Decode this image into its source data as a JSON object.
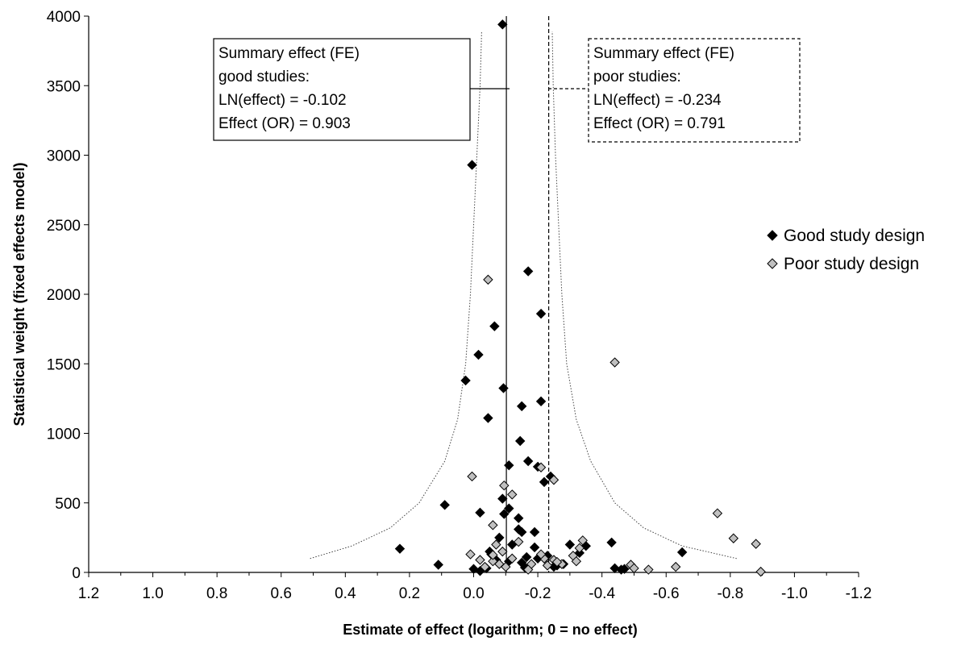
{
  "chart_data": {
    "type": "scatter",
    "title": "",
    "xlabel": "Estimate of effect (logarithm; 0 = no effect)",
    "ylabel": "Statistical weight (fixed effects model)",
    "xlim": [
      1.2,
      -1.2
    ],
    "ylim": [
      0,
      4000
    ],
    "x_reversed": true,
    "x_ticks": [
      "1.2",
      "1.0",
      "0.8",
      "0.6",
      "0.4",
      "0.2",
      "0.0",
      "-0.2",
      "-0.4",
      "-0.6",
      "-0.8",
      "-1.0",
      "-1.2"
    ],
    "x_tick_values": [
      1.2,
      1.0,
      0.8,
      0.6,
      0.4,
      0.2,
      0.0,
      -0.2,
      -0.4,
      -0.6,
      -0.8,
      -1.0,
      -1.2
    ],
    "y_ticks": [
      "0",
      "500",
      "1000",
      "1500",
      "2000",
      "2500",
      "3000",
      "3500",
      "4000"
    ],
    "y_tick_values": [
      0,
      500,
      1000,
      1500,
      2000,
      2500,
      3000,
      3500,
      4000
    ],
    "grid": false,
    "legend_position": "right",
    "series": [
      {
        "name": "Good study design",
        "marker": "diamond",
        "color": "#000000",
        "points": [
          [
            -0.09,
            3940
          ],
          [
            0.005,
            2930
          ],
          [
            -0.17,
            2165
          ],
          [
            -0.065,
            1770
          ],
          [
            -0.21,
            1860
          ],
          [
            -0.015,
            1565
          ],
          [
            0.025,
            1380
          ],
          [
            -0.093,
            1325
          ],
          [
            -0.15,
            1195
          ],
          [
            -0.21,
            1230
          ],
          [
            -0.045,
            1110
          ],
          [
            -0.145,
            945
          ],
          [
            -0.17,
            800
          ],
          [
            -0.24,
            690
          ],
          [
            -0.11,
            770
          ],
          [
            -0.2,
            760
          ],
          [
            -0.22,
            650
          ],
          [
            0.09,
            485
          ],
          [
            -0.09,
            530
          ],
          [
            -0.11,
            460
          ],
          [
            -0.02,
            430
          ],
          [
            -0.095,
            420
          ],
          [
            -0.14,
            390
          ],
          [
            -0.15,
            290
          ],
          [
            -0.19,
            290
          ],
          [
            -0.35,
            190
          ],
          [
            -0.43,
            215
          ],
          [
            0.23,
            170
          ],
          [
            -0.65,
            145
          ],
          [
            0.11,
            55
          ],
          [
            -0.05,
            150
          ],
          [
            -0.08,
            250
          ],
          [
            -0.12,
            200
          ],
          [
            -0.165,
            110
          ],
          [
            -0.28,
            60
          ],
          [
            -0.44,
            30
          ],
          [
            -0.46,
            20
          ],
          [
            -0.26,
            50
          ],
          [
            -0.04,
            30
          ],
          [
            -0.07,
            90
          ],
          [
            -0.15,
            70
          ],
          [
            -0.2,
            100
          ],
          [
            -0.3,
            200
          ],
          [
            0.0,
            25
          ],
          [
            -0.02,
            10
          ],
          [
            -0.14,
            310
          ],
          [
            -0.25,
            40
          ],
          [
            -0.16,
            35
          ],
          [
            -0.11,
            80
          ],
          [
            -0.055,
            130
          ],
          [
            -0.23,
            120
          ],
          [
            -0.19,
            180
          ],
          [
            -0.47,
            25
          ],
          [
            -0.33,
            140
          ]
        ]
      },
      {
        "name": "Poor study design",
        "marker": "diamond",
        "color": "#c0c0c0",
        "points": [
          [
            -0.045,
            2105
          ],
          [
            -0.44,
            1510
          ],
          [
            0.005,
            690
          ],
          [
            -0.095,
            625
          ],
          [
            -0.12,
            560
          ],
          [
            -0.21,
            755
          ],
          [
            -0.25,
            665
          ],
          [
            -0.06,
            340
          ],
          [
            -0.14,
            220
          ],
          [
            -0.76,
            425
          ],
          [
            -0.81,
            245
          ],
          [
            -0.88,
            205
          ],
          [
            -0.895,
            5
          ],
          [
            -0.63,
            40
          ],
          [
            -0.545,
            20
          ],
          [
            -0.49,
            55
          ],
          [
            -0.5,
            30
          ],
          [
            -0.34,
            230
          ],
          [
            -0.33,
            175
          ],
          [
            -0.31,
            120
          ],
          [
            -0.32,
            80
          ],
          [
            0.01,
            130
          ],
          [
            -0.02,
            90
          ],
          [
            -0.06,
            80
          ],
          [
            -0.09,
            150
          ],
          [
            -0.1,
            40
          ],
          [
            -0.25,
            90
          ],
          [
            -0.275,
            60
          ],
          [
            -0.035,
            40
          ],
          [
            -0.18,
            60
          ],
          [
            -0.22,
            100
          ],
          [
            -0.07,
            200
          ],
          [
            -0.17,
            20
          ],
          [
            -0.26,
            75
          ],
          [
            -0.06,
            125
          ],
          [
            -0.23,
            50
          ],
          [
            -0.21,
            130
          ],
          [
            -0.12,
            100
          ],
          [
            -0.08,
            60
          ]
        ]
      }
    ],
    "reference_lines": [
      {
        "name": "Summary effect (FE) good studies",
        "x": -0.102,
        "style": "solid"
      },
      {
        "name": "Summary effect (FE) poor studies",
        "x": -0.234,
        "style": "dashed"
      }
    ],
    "funnel_curves": {
      "style": "dotted",
      "left": [
        [
          0.51,
          100
        ],
        [
          0.38,
          190
        ],
        [
          0.26,
          320
        ],
        [
          0.17,
          500
        ],
        [
          0.09,
          800
        ],
        [
          0.05,
          1100
        ],
        [
          0.025,
          1500
        ],
        [
          0.01,
          2000
        ],
        [
          0.0,
          2500
        ],
        [
          -0.01,
          3000
        ],
        [
          -0.02,
          3500
        ],
        [
          -0.025,
          3890
        ]
      ],
      "right": [
        [
          -0.82,
          100
        ],
        [
          -0.65,
          190
        ],
        [
          -0.53,
          320
        ],
        [
          -0.44,
          500
        ],
        [
          -0.365,
          800
        ],
        [
          -0.32,
          1100
        ],
        [
          -0.29,
          1500
        ],
        [
          -0.275,
          2000
        ],
        [
          -0.265,
          2500
        ],
        [
          -0.255,
          3000
        ],
        [
          -0.248,
          3500
        ],
        [
          -0.245,
          3890
        ]
      ]
    },
    "annotations": [
      {
        "lines": [
          "Summary effect (FE)",
          "good studies:",
          "LN(effect) = -0.102",
          "Effect (OR) = 0.903"
        ],
        "border": "solid"
      },
      {
        "lines": [
          "Summary effect (FE)",
          "poor studies:",
          "LN(effect) = -0.234",
          "Effect (OR) = 0.791"
        ],
        "border": "dashed"
      }
    ]
  }
}
